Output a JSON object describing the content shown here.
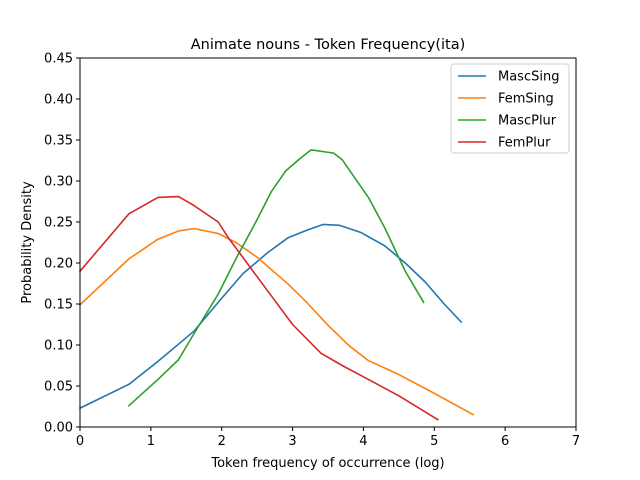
{
  "chart_data": {
    "type": "line",
    "title": "Animate nouns - Token Frequency(ita)",
    "xlabel": "Token frequency of occurrence (log)",
    "ylabel": "Probability Density",
    "xlim": [
      0,
      7
    ],
    "ylim": [
      0,
      0.45
    ],
    "x_ticks": [
      "0",
      "1",
      "2",
      "3",
      "4",
      "5",
      "6",
      "7"
    ],
    "y_ticks": [
      "0.00",
      "0.05",
      "0.10",
      "0.15",
      "0.20",
      "0.25",
      "0.30",
      "0.35",
      "0.40",
      "0.45"
    ],
    "grid": false,
    "legend_position": "top-right",
    "series": [
      {
        "name": "MascSing",
        "color": "#1f77b4",
        "points": [
          [
            0,
            0.023
          ],
          [
            0.69,
            0.052
          ],
          [
            1.1,
            0.08
          ],
          [
            1.39,
            0.101
          ],
          [
            1.61,
            0.117
          ],
          [
            1.95,
            0.152
          ],
          [
            2.3,
            0.187
          ],
          [
            2.64,
            0.212
          ],
          [
            2.94,
            0.231
          ],
          [
            3.2,
            0.24
          ],
          [
            3.43,
            0.247
          ],
          [
            3.66,
            0.246
          ],
          [
            3.97,
            0.237
          ],
          [
            4.3,
            0.221
          ],
          [
            4.59,
            0.2
          ],
          [
            4.87,
            0.177
          ],
          [
            5.14,
            0.15
          ],
          [
            5.38,
            0.128
          ]
        ]
      },
      {
        "name": "FemSing",
        "color": "#ff7f0e",
        "points": [
          [
            0,
            0.149
          ],
          [
            0.69,
            0.205
          ],
          [
            1.1,
            0.229
          ],
          [
            1.39,
            0.239
          ],
          [
            1.61,
            0.242
          ],
          [
            1.95,
            0.236
          ],
          [
            2.2,
            0.225
          ],
          [
            2.5,
            0.207
          ],
          [
            2.94,
            0.174
          ],
          [
            3.2,
            0.152
          ],
          [
            3.5,
            0.124
          ],
          [
            3.8,
            0.099
          ],
          [
            4.07,
            0.081
          ],
          [
            4.5,
            0.064
          ],
          [
            5.0,
            0.041
          ],
          [
            5.55,
            0.015
          ]
        ]
      },
      {
        "name": "MascPlur",
        "color": "#2ca02c",
        "points": [
          [
            0.69,
            0.026
          ],
          [
            1.1,
            0.058
          ],
          [
            1.39,
            0.082
          ],
          [
            1.61,
            0.114
          ],
          [
            1.95,
            0.162
          ],
          [
            2.2,
            0.205
          ],
          [
            2.5,
            0.253
          ],
          [
            2.7,
            0.287
          ],
          [
            2.9,
            0.312
          ],
          [
            3.1,
            0.327
          ],
          [
            3.26,
            0.338
          ],
          [
            3.58,
            0.334
          ],
          [
            3.7,
            0.326
          ],
          [
            4.07,
            0.28
          ],
          [
            4.3,
            0.243
          ],
          [
            4.59,
            0.19
          ],
          [
            4.85,
            0.152
          ]
        ]
      },
      {
        "name": "FemPlur",
        "color": "#d62728",
        "points": [
          [
            0,
            0.19
          ],
          [
            0.69,
            0.26
          ],
          [
            1.1,
            0.28
          ],
          [
            1.39,
            0.281
          ],
          [
            1.61,
            0.27
          ],
          [
            1.95,
            0.25
          ],
          [
            2.1,
            0.23
          ],
          [
            2.4,
            0.195
          ],
          [
            2.7,
            0.16
          ],
          [
            3.0,
            0.125
          ],
          [
            3.4,
            0.09
          ],
          [
            3.7,
            0.075
          ],
          [
            4.07,
            0.058
          ],
          [
            4.5,
            0.038
          ],
          [
            5.05,
            0.009
          ]
        ]
      }
    ]
  }
}
